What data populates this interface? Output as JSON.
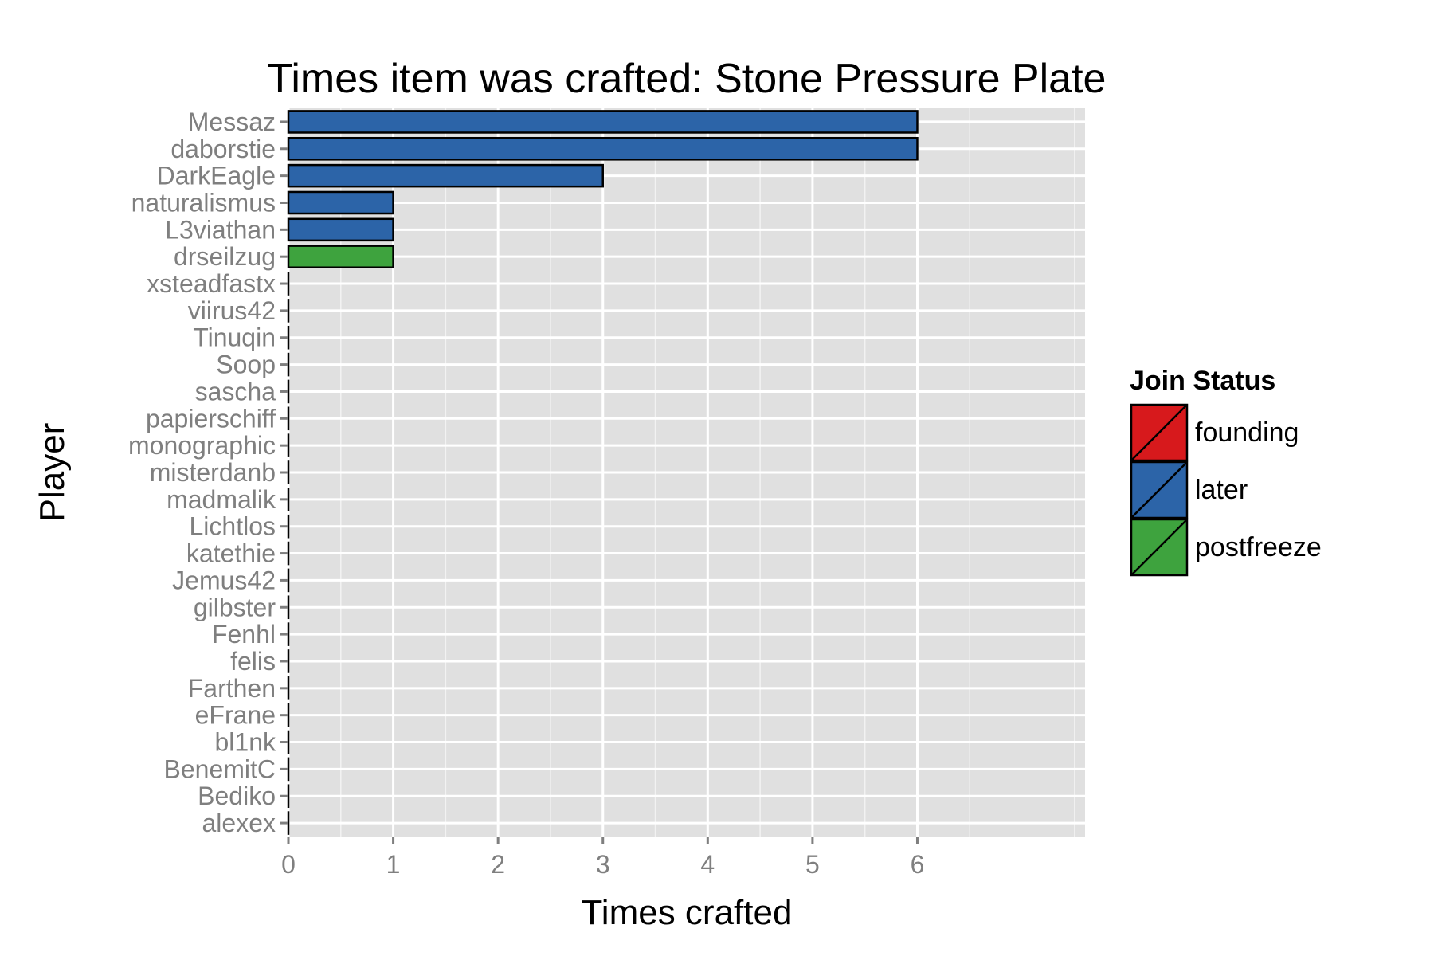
{
  "chart_data": {
    "type": "bar",
    "orientation": "horizontal",
    "title": "Times item was crafted: Stone Pressure Plate",
    "xlabel": "Times crafted",
    "ylabel": "Player",
    "xlim": [
      0,
      7.6
    ],
    "xticks": [
      0,
      1,
      2,
      3,
      4,
      5,
      6
    ],
    "grid": true,
    "legend_position": "right",
    "legend_title": "Join Status",
    "legend": [
      {
        "name": "founding",
        "color": "#d7191c"
      },
      {
        "name": "later",
        "color": "#2c64a8"
      },
      {
        "name": "postfreeze",
        "color": "#3ea33e"
      }
    ],
    "categories": [
      "Messaz",
      "daborstie",
      "DarkEagle",
      "naturalismus",
      "L3viathan",
      "drseilzug",
      "xsteadfastx",
      "viirus42",
      "Tinuqin",
      "Soop",
      "sascha",
      "papierschiff",
      "monographic",
      "misterdanb",
      "madmalik",
      "Lichtlos",
      "katethie",
      "Jemus42",
      "gilbster",
      "Fenhl",
      "felis",
      "Farthen",
      "eFrane",
      "bl1nk",
      "BenemitC",
      "Bediko",
      "alexex"
    ],
    "values": [
      6,
      6,
      3,
      1,
      1,
      1,
      0,
      0,
      0,
      0,
      0,
      0,
      0,
      0,
      0,
      0,
      0,
      0,
      0,
      0,
      0,
      0,
      0,
      0,
      0,
      0,
      0
    ],
    "groups": [
      "later",
      "later",
      "later",
      "later",
      "later",
      "postfreeze",
      "later",
      "later",
      "later",
      "later",
      "later",
      "later",
      "later",
      "later",
      "later",
      "later",
      "later",
      "later",
      "later",
      "later",
      "later",
      "later",
      "later",
      "later",
      "later",
      "later",
      "later"
    ]
  }
}
